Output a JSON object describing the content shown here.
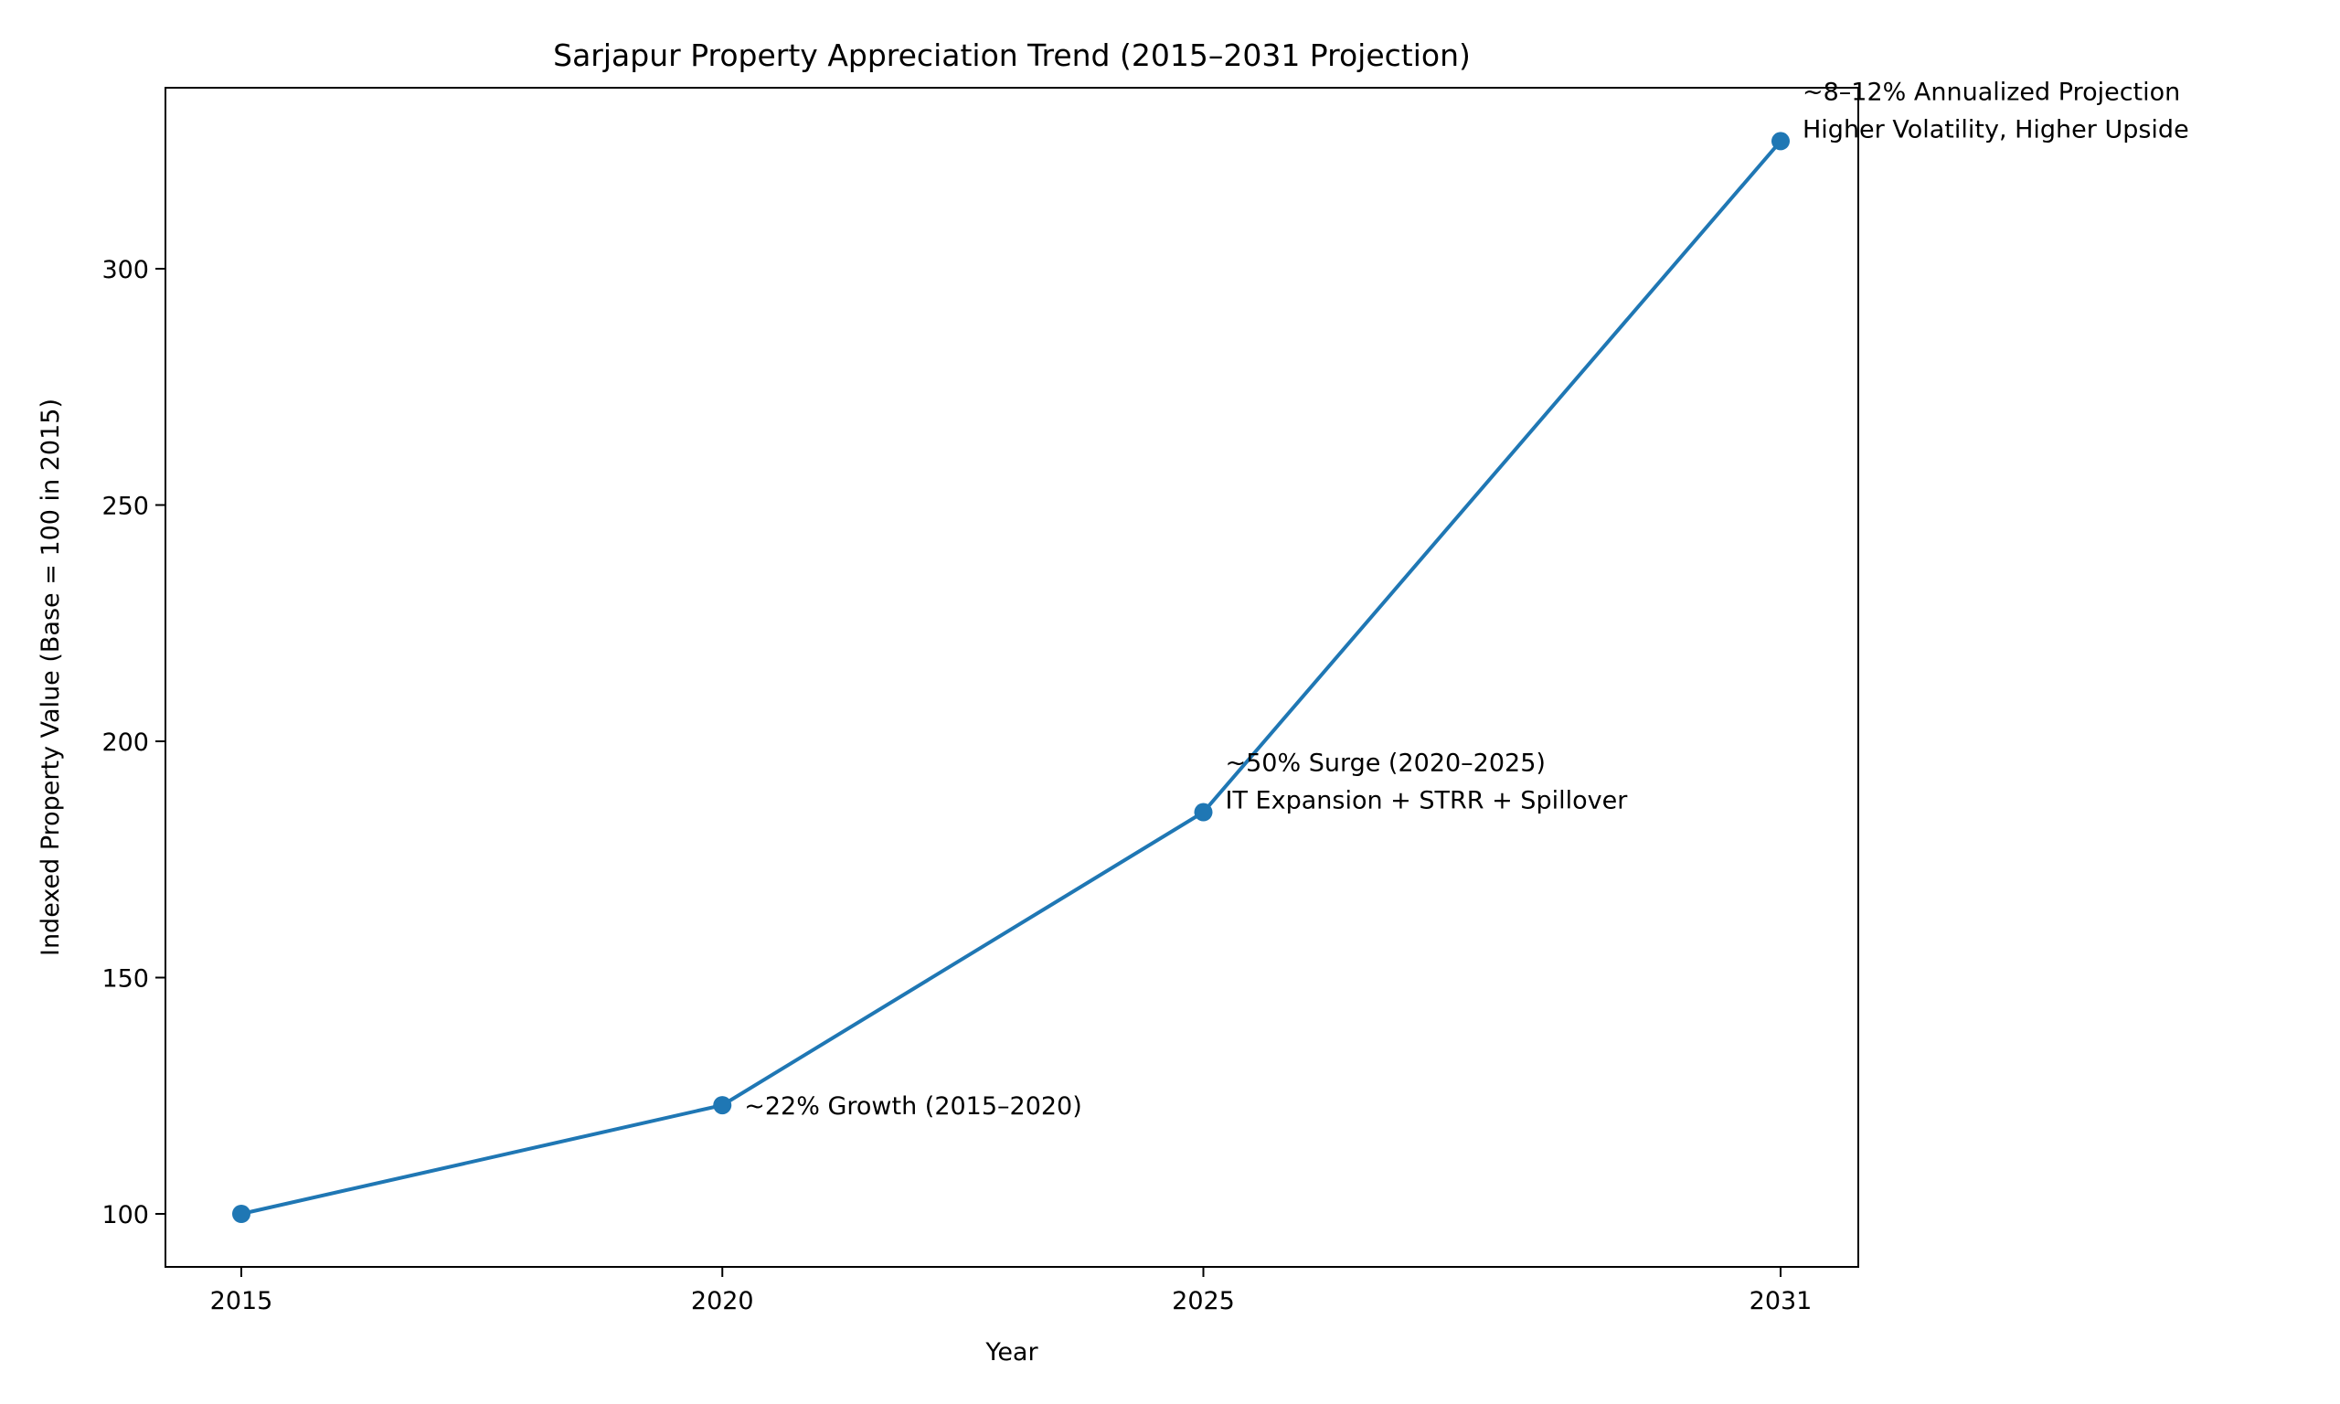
{
  "chart_data": {
    "type": "line",
    "title": "Sarjapur Property Appreciation Trend (2015–2031 Projection)",
    "xlabel": "Year",
    "ylabel": "Indexed Property Value (Base = 100 in 2015)",
    "x": [
      2015,
      2020,
      2025,
      2031
    ],
    "series": [
      {
        "values": [
          100,
          123,
          185,
          327
        ],
        "color": "#1f77b4",
        "marker": "circle"
      }
    ],
    "xticks": [
      "2015",
      "2020",
      "2025",
      "2031"
    ],
    "yticks": [
      "100",
      "150",
      "200",
      "250",
      "300"
    ],
    "ylim": [
      88,
      338
    ],
    "xlim": [
      2014.2,
      2031.8
    ],
    "grid": false,
    "annotations": [
      {
        "x": 2020,
        "y": 123,
        "lines": [
          "~22% Growth (2015–2020)"
        ]
      },
      {
        "x": 2025,
        "y": 185,
        "lines": [
          "~50% Surge (2020–2025)",
          "IT Expansion + STRR + Spillover"
        ]
      },
      {
        "x": 2031,
        "y": 327,
        "lines": [
          "~8–12% Annualized Projection",
          "Higher Volatility, Higher Upside"
        ]
      }
    ]
  }
}
